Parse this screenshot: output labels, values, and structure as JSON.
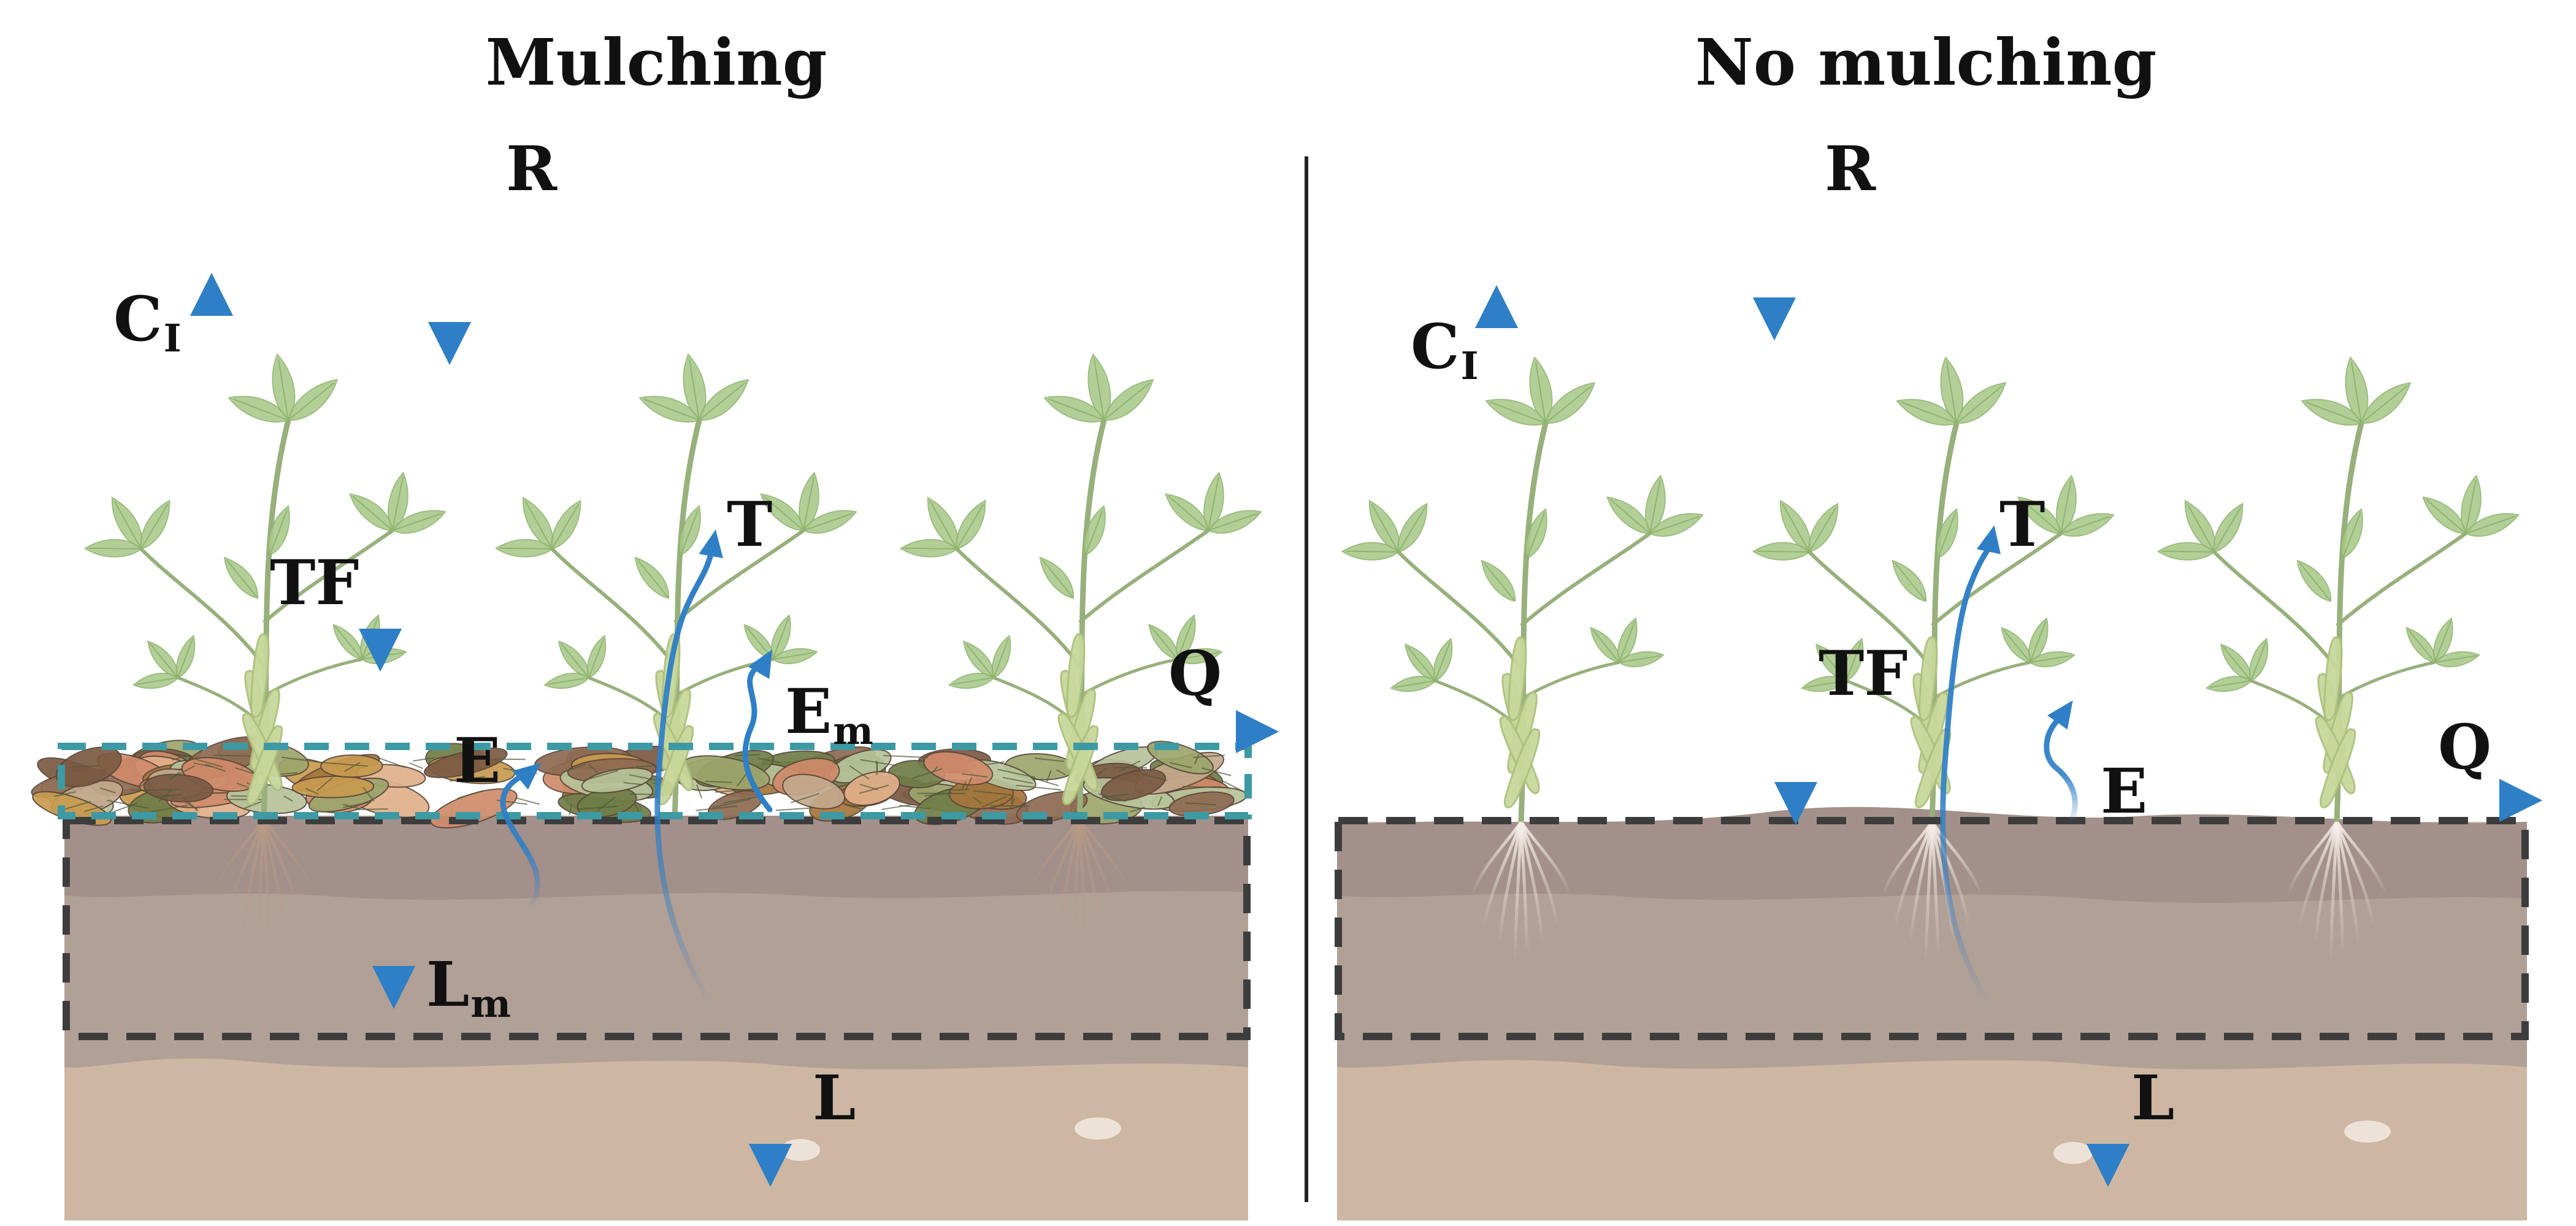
{
  "panels": {
    "mulching": {
      "title": "Mulching",
      "labels": {
        "R": "R",
        "CI": {
          "main": "C",
          "sub": "I"
        },
        "TF": "TF",
        "T": "T",
        "Em": {
          "main": "E",
          "sub": "m"
        },
        "E": "E",
        "Q": "Q",
        "Lm": {
          "main": "L",
          "sub": "m"
        },
        "L": "L"
      }
    },
    "no_mulching": {
      "title": "No mulching",
      "labels": {
        "R": "R",
        "CI": {
          "main": "C",
          "sub": "I"
        },
        "T": "T",
        "TF": "TF",
        "E": "E",
        "Q": "Q",
        "L": "L"
      }
    }
  },
  "colors": {
    "arrow": "#2f7fc6",
    "leaf": "#a9c98a",
    "leaf_dark": "#8fb46f",
    "stem": "#98b07c",
    "pod": "#c8d79a",
    "soil_top": "#a49086",
    "soil_mid": "#b3a196",
    "subsoil": "#cdb7a2",
    "dash_box": "#3d3d3d",
    "mulch_box": "#3d9aa4"
  }
}
